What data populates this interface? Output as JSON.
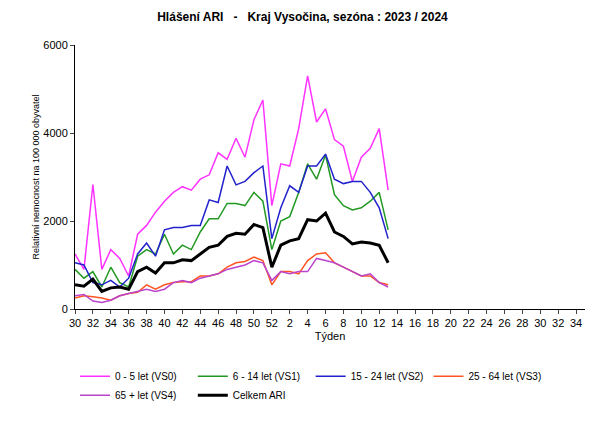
{
  "chart_data": {
    "type": "line",
    "title": "Hlášení ARI   -   Kraj Vysočina, sezóna : 2023 / 2024",
    "x_label": "Týden",
    "y_label": "Relativní nemocnost na 100 000 obyvatel",
    "categories": [
      "30",
      null,
      "32",
      null,
      "34",
      null,
      "36",
      null,
      "38",
      null,
      "40",
      null,
      "42",
      null,
      "44",
      null,
      "46",
      null,
      "48",
      null,
      "50",
      null,
      "52",
      null,
      "2",
      null,
      "4",
      null,
      "6",
      null,
      "8",
      null,
      "10",
      null,
      "12",
      null,
      "14",
      null,
      "16",
      null,
      "18",
      null,
      "20",
      null,
      "22",
      null,
      "24",
      null,
      "26",
      null,
      "28",
      null,
      "30",
      null,
      "32",
      null,
      "34",
      null
    ],
    "ylim": [
      0,
      6000
    ],
    "yticks": [
      0,
      2000,
      4000,
      6000
    ],
    "grid": false,
    "legend": "bottom",
    "series": [
      {
        "name": "0 - 5 let (VS0)",
        "color": "#ff33ff",
        "values": [
          1250,
          900,
          2830,
          900,
          1350,
          1150,
          750,
          1700,
          1900,
          2200,
          2450,
          2650,
          2780,
          2700,
          2950,
          3050,
          3550,
          3400,
          3880,
          3450,
          4300,
          4750,
          2350,
          3300,
          3250,
          4100,
          5300,
          4250,
          4550,
          3850,
          3700,
          2900,
          3450,
          3650,
          4100,
          2700,
          null,
          null,
          null,
          null,
          null,
          null,
          null,
          null,
          null,
          null,
          null,
          null,
          null,
          null,
          null,
          null,
          null,
          null,
          null,
          null,
          null,
          null
        ]
      },
      {
        "name": "6 - 14 let (VS1)",
        "color": "#229922",
        "values": [
          900,
          700,
          850,
          500,
          950,
          600,
          500,
          1200,
          1350,
          1250,
          1700,
          1250,
          1450,
          1350,
          1750,
          2050,
          2050,
          2400,
          2400,
          2350,
          2650,
          2450,
          1350,
          2000,
          2100,
          2650,
          3300,
          2950,
          3500,
          2600,
          2350,
          2250,
          2300,
          2450,
          2650,
          1800,
          null,
          null,
          null,
          null,
          null,
          null,
          null,
          null,
          null,
          null,
          null,
          null,
          null,
          null,
          null,
          null,
          null,
          null,
          null,
          null,
          null,
          null
        ]
      },
      {
        "name": "15 - 24 let (VS2)",
        "color": "#2222cc",
        "values": [
          1050,
          1000,
          600,
          550,
          650,
          500,
          700,
          1250,
          1500,
          1200,
          1800,
          1850,
          1850,
          1900,
          1900,
          2480,
          2420,
          3250,
          2820,
          2900,
          3100,
          3250,
          1600,
          2300,
          2800,
          2650,
          3250,
          3250,
          3520,
          2950,
          2850,
          2900,
          2900,
          2650,
          2300,
          1600,
          null,
          null,
          null,
          null,
          null,
          null,
          null,
          null,
          null,
          null,
          null,
          null,
          null,
          null,
          null,
          null,
          null,
          null,
          null,
          null,
          null,
          null
        ]
      },
      {
        "name": "25 - 64 let (VS3)",
        "color": "#ff5522",
        "values": [
          250,
          300,
          280,
          250,
          200,
          300,
          350,
          380,
          550,
          450,
          550,
          600,
          620,
          620,
          750,
          750,
          800,
          950,
          1050,
          1080,
          1180,
          1100,
          550,
          850,
          850,
          800,
          1100,
          1250,
          1280,
          1050,
          950,
          850,
          750,
          750,
          600,
          550,
          null,
          null,
          null,
          null,
          null,
          null,
          null,
          null,
          null,
          null,
          null,
          null,
          null,
          null,
          null,
          null,
          null,
          null,
          null,
          null,
          null,
          null
        ]
      },
      {
        "name": "65 + let (VS4)",
        "color": "#bb44cc",
        "values": [
          300,
          330,
          180,
          150,
          200,
          300,
          350,
          400,
          450,
          400,
          450,
          600,
          650,
          600,
          700,
          750,
          800,
          900,
          950,
          1000,
          1100,
          1050,
          650,
          850,
          800,
          850,
          850,
          1150,
          1100,
          1050,
          950,
          850,
          750,
          800,
          600,
          500,
          null,
          null,
          null,
          null,
          null,
          null,
          null,
          null,
          null,
          null,
          null,
          null,
          null,
          null,
          null,
          null,
          null,
          null,
          null,
          null,
          null,
          null
        ]
      },
      {
        "name": "Celkem ARI",
        "color": "#000000",
        "values": [
          550,
          520,
          680,
          400,
          480,
          500,
          450,
          850,
          950,
          820,
          1050,
          1050,
          1120,
          1100,
          1250,
          1400,
          1450,
          1650,
          1720,
          1700,
          1920,
          1850,
          950,
          1450,
          1550,
          1600,
          2030,
          2000,
          2180,
          1750,
          1650,
          1480,
          1520,
          1500,
          1450,
          1050,
          null,
          null,
          null,
          null,
          null,
          null,
          null,
          null,
          null,
          null,
          null,
          null,
          null,
          null,
          null,
          null,
          null,
          null,
          null,
          null,
          null,
          null
        ]
      }
    ]
  }
}
